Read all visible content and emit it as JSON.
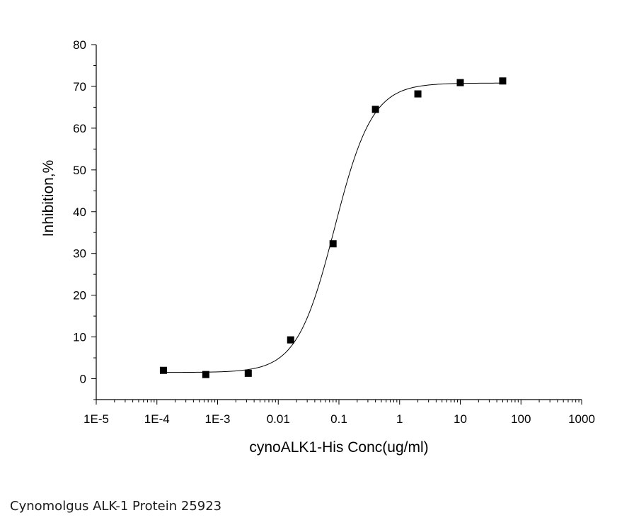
{
  "chart_data": {
    "type": "scatter",
    "xlabel": "cynoALK1-His Conc(ug/ml)",
    "ylabel": "Inhibition,%",
    "x_scale": "log",
    "xlim": [
      1e-05,
      1000
    ],
    "ylim": [
      -5,
      80
    ],
    "x_ticks": [
      "1E-5",
      "1E-4",
      "1E-3",
      "0.01",
      "0.1",
      "1",
      "10",
      "100",
      "1000"
    ],
    "y_ticks": [
      "0",
      "10",
      "20",
      "30",
      "40",
      "50",
      "60",
      "70",
      "80"
    ],
    "grid": false,
    "legend": "none",
    "series": [
      {
        "marker": "square",
        "color": "#000000",
        "x": [
          0.000128,
          0.00064,
          0.0032,
          0.016,
          0.08,
          0.4,
          2,
          10,
          50
        ],
        "y": [
          2.0,
          1.0,
          1.3,
          9.3,
          32.3,
          64.5,
          68.2,
          70.9,
          71.3
        ]
      }
    ],
    "fit_curve": {
      "model": "4PL",
      "bottom": 1.5,
      "top": 70.8,
      "ec50": 0.085,
      "hill": 1.4,
      "x_range": [
        0.000128,
        50
      ],
      "color": "#000000"
    }
  },
  "caption": "Cynomolgus ALK-1 Protein 25923"
}
